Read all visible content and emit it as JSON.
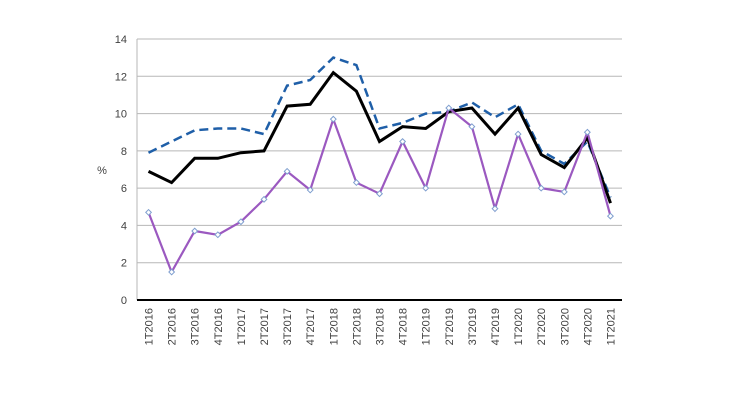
{
  "chart_data": {
    "type": "line",
    "title": "",
    "xlabel": "",
    "ylabel": "%",
    "ylim": [
      0,
      14
    ],
    "yticks": [
      0,
      2,
      4,
      6,
      8,
      10,
      12,
      14
    ],
    "grid": true,
    "legend": "none",
    "categories": [
      "1T2016",
      "2T2016",
      "3T2016",
      "4T2016",
      "1T2017",
      "2T2017",
      "3T2017",
      "4T2017",
      "1T2018",
      "2T2018",
      "3T2018",
      "4T2018",
      "1T2019",
      "2T2019",
      "3T2019",
      "4T2019",
      "1T2020",
      "2T2020",
      "3T2020",
      "4T2020",
      "1T2021"
    ],
    "series": [
      {
        "style": "dashed",
        "color": "#1F5FA8",
        "markers": false,
        "values": [
          7.9,
          8.5,
          9.1,
          9.2,
          9.2,
          8.9,
          11.5,
          11.8,
          13.0,
          12.6,
          9.2,
          9.5,
          10.0,
          10.1,
          10.6,
          9.8,
          10.5,
          8.0,
          7.3,
          8.5,
          5.5
        ]
      },
      {
        "style": "solid",
        "color": "#000000",
        "markers": false,
        "values": [
          6.9,
          6.3,
          7.6,
          7.6,
          7.9,
          8.0,
          10.4,
          10.5,
          12.2,
          11.2,
          8.5,
          9.3,
          9.2,
          10.1,
          10.3,
          8.9,
          10.3,
          7.8,
          7.1,
          8.7,
          5.2
        ]
      },
      {
        "style": "solid",
        "color": "#9B59C0",
        "markers": true,
        "values": [
          4.7,
          1.5,
          3.7,
          3.5,
          4.2,
          5.4,
          6.9,
          5.9,
          9.7,
          6.3,
          5.7,
          8.5,
          6.0,
          10.3,
          9.3,
          4.9,
          8.9,
          6.0,
          5.8,
          9.0,
          4.5
        ]
      }
    ]
  }
}
